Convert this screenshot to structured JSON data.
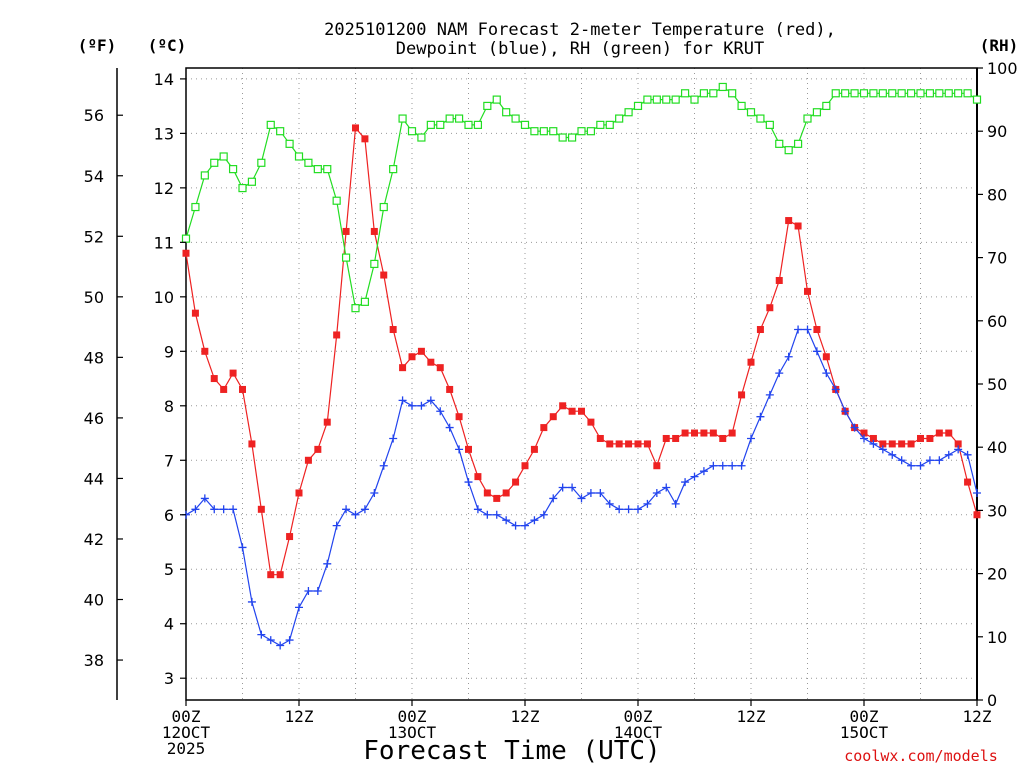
{
  "chart_data": {
    "type": "line",
    "title_line1": "2025101200 NAM Forecast 2-meter Temperature (red),",
    "title_line2": "Dewpoint (blue), RH (green) for KRUT",
    "unit_f": "(ºF)",
    "unit_c": "(ºC)",
    "unit_rh": "(RH)",
    "xlabel": "Forecast Time (UTC)",
    "credit": "coolwx.com/models",
    "xlim": [
      0,
      84
    ],
    "ylim_c": [
      2.6,
      14.2
    ],
    "ylim_rh": [
      0,
      100
    ],
    "x_ticks": [
      {
        "x": 0,
        "lines": [
          "00Z",
          "12OCT",
          "2025"
        ]
      },
      {
        "x": 12,
        "lines": [
          "12Z"
        ]
      },
      {
        "x": 24,
        "lines": [
          "00Z",
          "13OCT"
        ]
      },
      {
        "x": 36,
        "lines": [
          "12Z"
        ]
      },
      {
        "x": 48,
        "lines": [
          "00Z",
          "14OCT"
        ]
      },
      {
        "x": 60,
        "lines": [
          "12Z"
        ]
      },
      {
        "x": 72,
        "lines": [
          "00Z",
          "15OCT"
        ]
      },
      {
        "x": 84,
        "lines": [
          "12Z"
        ]
      }
    ],
    "yticks_c": [
      3,
      4,
      5,
      6,
      7,
      8,
      9,
      10,
      11,
      12,
      13,
      14
    ],
    "yticks_f": [
      38,
      40,
      42,
      44,
      46,
      48,
      50,
      52,
      54,
      56
    ],
    "yticks_rh": [
      0,
      10,
      20,
      30,
      40,
      50,
      60,
      70,
      80,
      90,
      100
    ],
    "grid": true,
    "series": [
      {
        "name": "Temperature",
        "color": "#ee2222",
        "marker": "filled-square",
        "axis": "c",
        "x": [
          0,
          1,
          2,
          3,
          4,
          5,
          6,
          7,
          8,
          9,
          10,
          11,
          12,
          13,
          14,
          15,
          16,
          17,
          18,
          19,
          20,
          21,
          22,
          23,
          24,
          25,
          26,
          27,
          28,
          29,
          30,
          31,
          32,
          33,
          34,
          35,
          36,
          37,
          38,
          39,
          40,
          41,
          42,
          43,
          44,
          45,
          46,
          47,
          48,
          49,
          50,
          51,
          52,
          53,
          54,
          55,
          56,
          57,
          58,
          59,
          60,
          61,
          62,
          63,
          64,
          65,
          66,
          67,
          68,
          69,
          70,
          71,
          72,
          73,
          74,
          75,
          76,
          77,
          78,
          79,
          80,
          81,
          82,
          83,
          84
        ],
        "values": [
          10.8,
          9.7,
          9.0,
          8.5,
          8.3,
          8.6,
          8.3,
          7.3,
          6.1,
          4.9,
          4.9,
          5.6,
          6.4,
          7.0,
          7.2,
          7.7,
          9.3,
          11.2,
          13.1,
          12.9,
          11.2,
          10.4,
          9.4,
          8.7,
          8.9,
          9.0,
          8.8,
          8.7,
          8.3,
          7.8,
          7.2,
          6.7,
          6.4,
          6.3,
          6.4,
          6.6,
          6.9,
          7.2,
          7.6,
          7.8,
          8.0,
          7.9,
          7.9,
          7.7,
          7.4,
          7.3,
          7.3,
          7.3,
          7.3,
          7.3,
          6.9,
          7.4,
          7.4,
          7.5,
          7.5,
          7.5,
          7.5,
          7.4,
          7.5,
          8.2,
          8.8,
          9.4,
          9.8,
          10.3,
          11.4,
          11.3,
          10.1,
          9.4,
          8.9,
          8.3,
          7.9,
          7.6,
          7.5,
          7.4,
          7.3,
          7.3,
          7.3,
          7.3,
          7.4,
          7.4,
          7.5,
          7.5,
          7.3,
          6.6,
          6.0
        ]
      },
      {
        "name": "Dewpoint",
        "color": "#2244ee",
        "marker": "plus",
        "axis": "c",
        "x": [
          0,
          1,
          2,
          3,
          4,
          5,
          6,
          7,
          8,
          9,
          10,
          11,
          12,
          13,
          14,
          15,
          16,
          17,
          18,
          19,
          20,
          21,
          22,
          23,
          24,
          25,
          26,
          27,
          28,
          29,
          30,
          31,
          32,
          33,
          34,
          35,
          36,
          37,
          38,
          39,
          40,
          41,
          42,
          43,
          44,
          45,
          46,
          47,
          48,
          49,
          50,
          51,
          52,
          53,
          54,
          55,
          56,
          57,
          58,
          59,
          60,
          61,
          62,
          63,
          64,
          65,
          66,
          67,
          68,
          69,
          70,
          71,
          72,
          73,
          74,
          75,
          76,
          77,
          78,
          79,
          80,
          81,
          82,
          83,
          84
        ],
        "values": [
          6.0,
          6.1,
          6.3,
          6.1,
          6.1,
          6.1,
          5.4,
          4.4,
          3.8,
          3.7,
          3.6,
          3.7,
          4.3,
          4.6,
          4.6,
          5.1,
          5.8,
          6.1,
          6.0,
          6.1,
          6.4,
          6.9,
          7.4,
          8.1,
          8.0,
          8.0,
          8.1,
          7.9,
          7.6,
          7.2,
          6.6,
          6.1,
          6.0,
          6.0,
          5.9,
          5.8,
          5.8,
          5.9,
          6.0,
          6.3,
          6.5,
          6.5,
          6.3,
          6.4,
          6.4,
          6.2,
          6.1,
          6.1,
          6.1,
          6.2,
          6.4,
          6.5,
          6.2,
          6.6,
          6.7,
          6.8,
          6.9,
          6.9,
          6.9,
          6.9,
          7.4,
          7.8,
          8.2,
          8.6,
          8.9,
          9.4,
          9.4,
          9.0,
          8.6,
          8.3,
          7.9,
          7.6,
          7.4,
          7.3,
          7.2,
          7.1,
          7.0,
          6.9,
          6.9,
          7.0,
          7.0,
          7.1,
          7.2,
          7.1,
          6.4
        ]
      },
      {
        "name": "RH",
        "color": "#22dd22",
        "marker": "open-square",
        "axis": "rh",
        "x": [
          0,
          1,
          2,
          3,
          4,
          5,
          6,
          7,
          8,
          9,
          10,
          11,
          12,
          13,
          14,
          15,
          16,
          17,
          18,
          19,
          20,
          21,
          22,
          23,
          24,
          25,
          26,
          27,
          28,
          29,
          30,
          31,
          32,
          33,
          34,
          35,
          36,
          37,
          38,
          39,
          40,
          41,
          42,
          43,
          44,
          45,
          46,
          47,
          48,
          49,
          50,
          51,
          52,
          53,
          54,
          55,
          56,
          57,
          58,
          59,
          60,
          61,
          62,
          63,
          64,
          65,
          66,
          67,
          68,
          69,
          70,
          71,
          72,
          73,
          74,
          75,
          76,
          77,
          78,
          79,
          80,
          81,
          82,
          83,
          84
        ],
        "values": [
          73,
          78,
          83,
          85,
          86,
          84,
          81,
          82,
          85,
          91,
          90,
          88,
          86,
          85,
          84,
          84,
          79,
          70,
          62,
          63,
          69,
          78,
          84,
          92,
          90,
          89,
          91,
          91,
          92,
          92,
          91,
          91,
          94,
          95,
          93,
          92,
          91,
          90,
          90,
          90,
          89,
          89,
          90,
          90,
          91,
          91,
          92,
          93,
          94,
          95,
          95,
          95,
          95,
          96,
          95,
          96,
          96,
          97,
          96,
          94,
          93,
          92,
          91,
          88,
          87,
          88,
          92,
          93,
          94,
          96,
          96,
          96,
          96,
          96,
          96,
          96,
          96,
          96,
          96,
          96,
          96,
          96,
          96,
          96,
          95
        ]
      }
    ]
  }
}
